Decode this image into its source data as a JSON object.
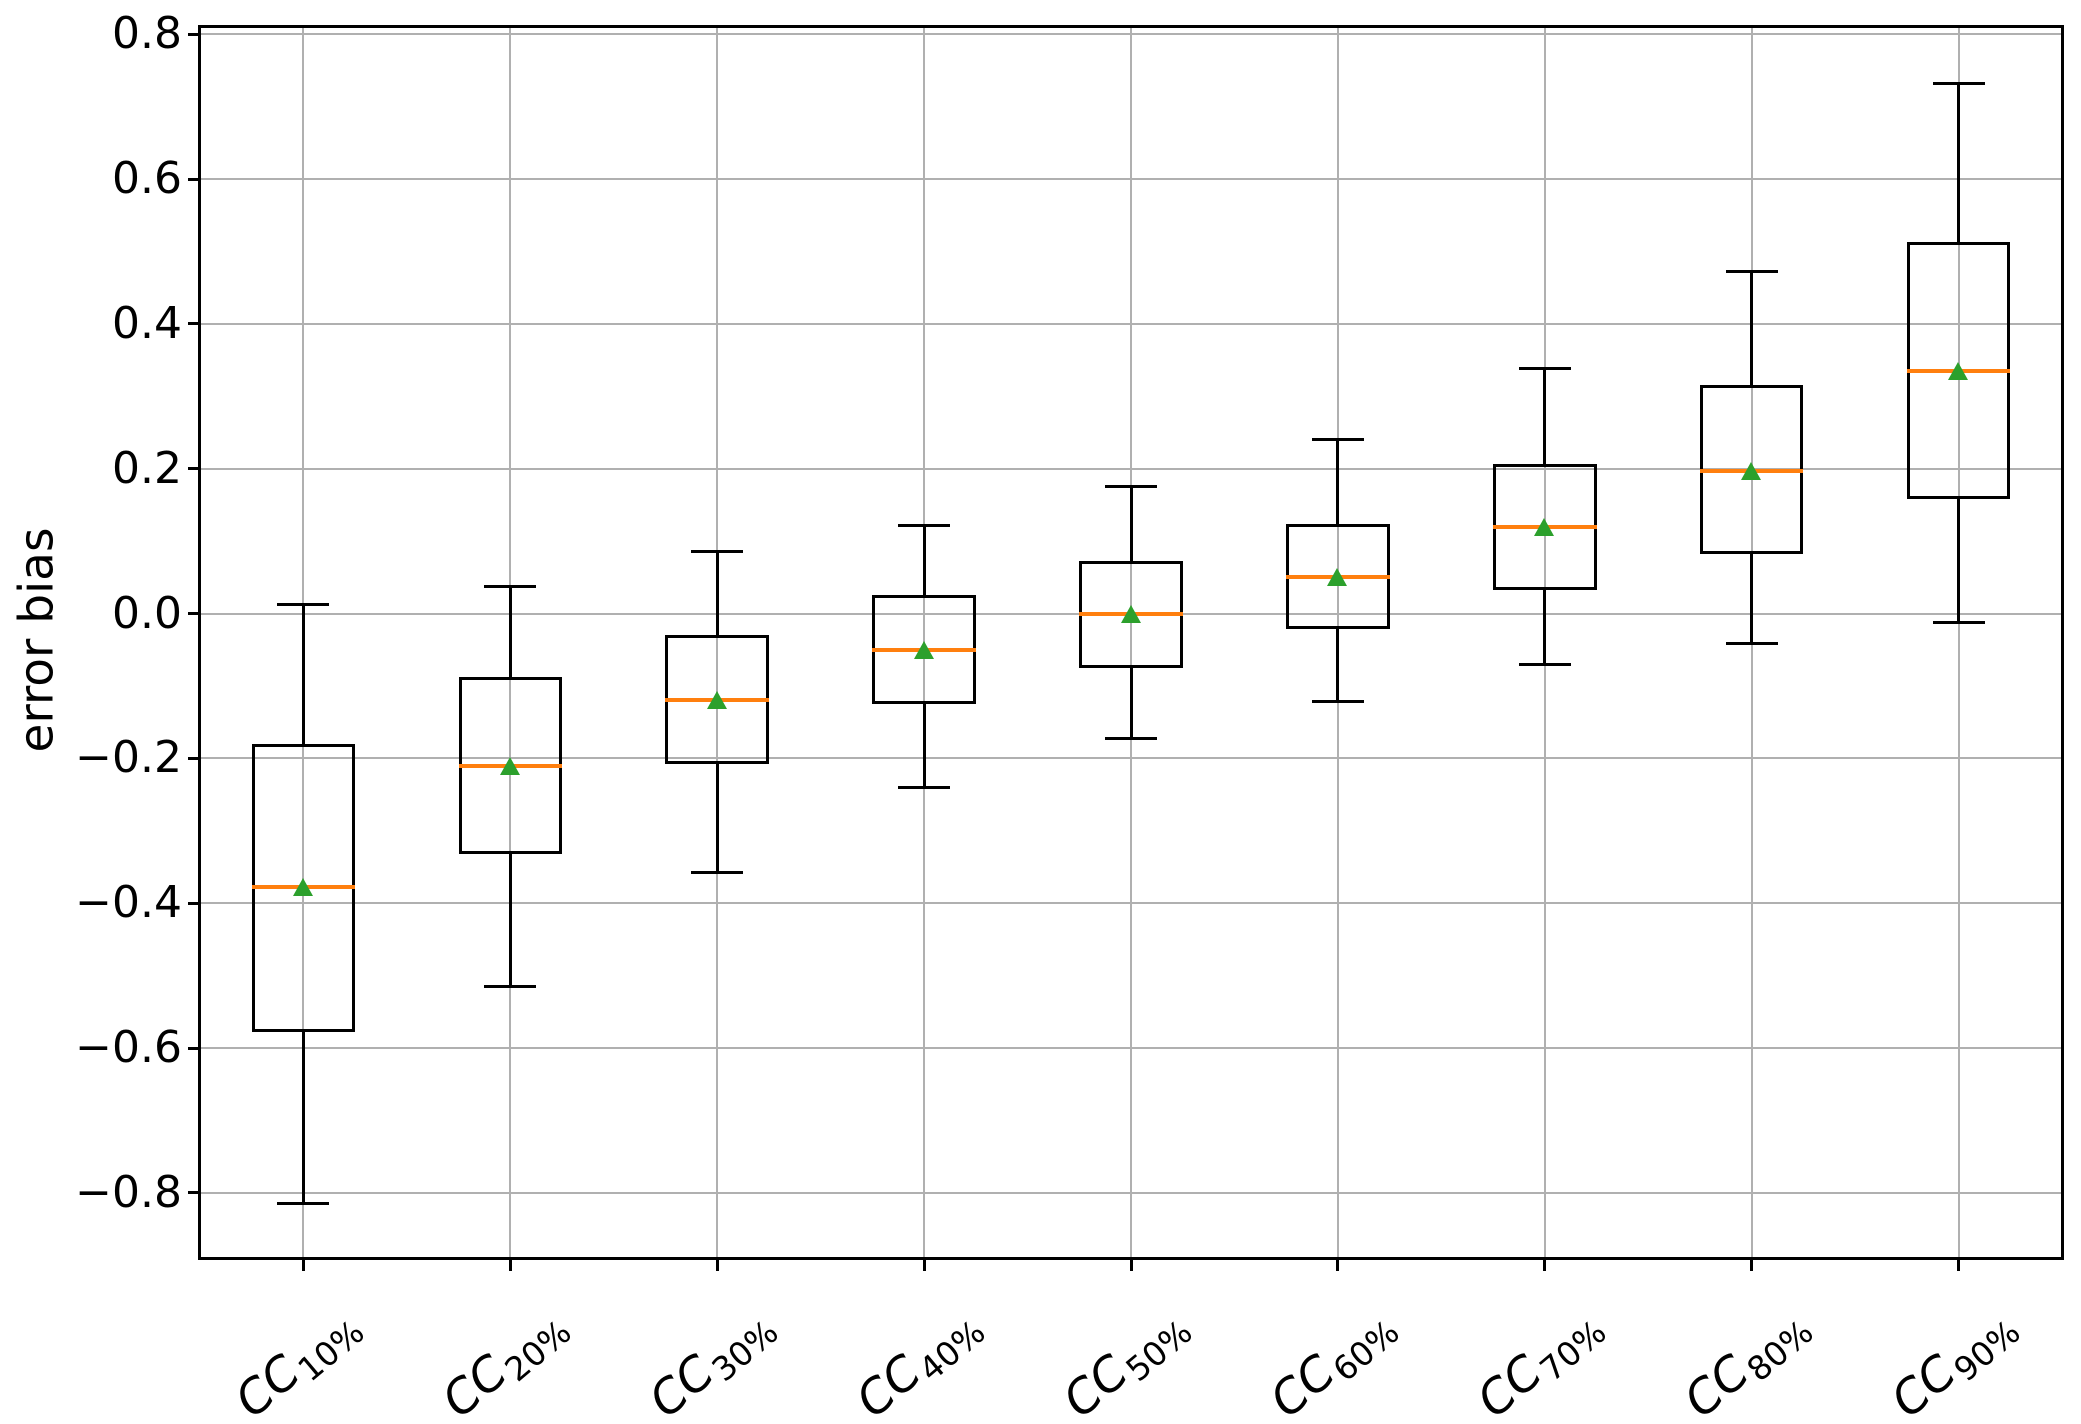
{
  "chart_data": {
    "type": "boxplot",
    "title": "",
    "xlabel": "",
    "ylabel": "error bias",
    "ylim": [
      -0.89,
      0.81
    ],
    "yticks": [
      0.8,
      0.6,
      0.4,
      0.2,
      0.0,
      -0.2,
      -0.4,
      -0.6,
      -0.8
    ],
    "grid": true,
    "legend": false,
    "colors": {
      "median": "#ff7f0e",
      "mean_marker": "#2ca02c",
      "box_line": "#000000",
      "gridline": "#b0b0b0",
      "background": "#ffffff"
    },
    "categories": [
      "CC10%",
      "CC20%",
      "CC30%",
      "CC40%",
      "CC50%",
      "CC60%",
      "CC70%",
      "CC80%",
      "CC90%"
    ],
    "boxes": [
      {
        "label": "CC10%",
        "base": "CC",
        "subscript": "10%",
        "whislo": -0.815,
        "q1": -0.578,
        "med": -0.378,
        "mean": -0.378,
        "q3": -0.18,
        "whishi": 0.012
      },
      {
        "label": "CC20%",
        "base": "CC",
        "subscript": "20%",
        "whislo": -0.515,
        "q1": -0.332,
        "med": -0.21,
        "mean": -0.21,
        "q3": -0.087,
        "whishi": 0.038
      },
      {
        "label": "CC30%",
        "base": "CC",
        "subscript": "30%",
        "whislo": -0.358,
        "q1": -0.208,
        "med": -0.12,
        "mean": -0.12,
        "q3": -0.03,
        "whishi": 0.085
      },
      {
        "label": "CC40%",
        "base": "CC",
        "subscript": "40%",
        "whislo": -0.24,
        "q1": -0.125,
        "med": -0.05,
        "mean": -0.05,
        "q3": 0.025,
        "whishi": 0.122
      },
      {
        "label": "CC50%",
        "base": "CC",
        "subscript": "50%",
        "whislo": -0.172,
        "q1": -0.075,
        "med": 0.0,
        "mean": 0.0,
        "q3": 0.073,
        "whishi": 0.175
      },
      {
        "label": "CC60%",
        "base": "CC",
        "subscript": "60%",
        "whislo": -0.122,
        "q1": -0.022,
        "med": 0.05,
        "mean": 0.05,
        "q3": 0.123,
        "whishi": 0.24
      },
      {
        "label": "CC70%",
        "base": "CC",
        "subscript": "70%",
        "whislo": -0.07,
        "q1": 0.033,
        "med": 0.12,
        "mean": 0.12,
        "q3": 0.207,
        "whishi": 0.338
      },
      {
        "label": "CC80%",
        "base": "CC",
        "subscript": "80%",
        "whislo": -0.042,
        "q1": 0.082,
        "med": 0.197,
        "mean": 0.197,
        "q3": 0.316,
        "whishi": 0.472
      },
      {
        "label": "CC90%",
        "base": "CC",
        "subscript": "90%",
        "whislo": -0.012,
        "q1": 0.158,
        "med": 0.335,
        "mean": 0.335,
        "q3": 0.513,
        "whishi": 0.732
      }
    ]
  }
}
